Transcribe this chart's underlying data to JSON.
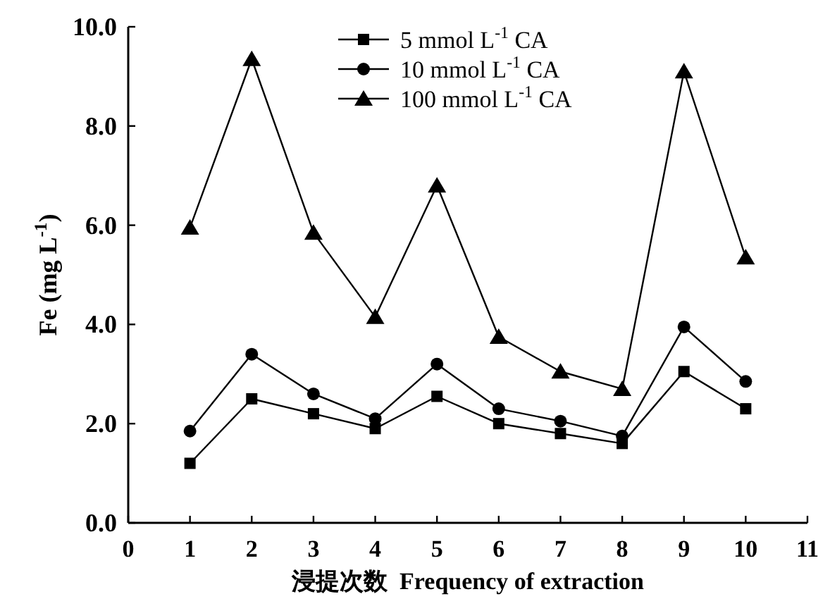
{
  "chart_data": {
    "type": "line",
    "xlabel": "浸提次数  Frequency of extraction",
    "ylabel": "Fe (mg L$^{-1}$)",
    "x": [
      1,
      2,
      3,
      4,
      5,
      6,
      7,
      8,
      9,
      10
    ],
    "xlim": [
      0,
      11
    ],
    "xticks": [
      0,
      1,
      2,
      3,
      4,
      5,
      6,
      7,
      8,
      9,
      10,
      11
    ],
    "ylim": [
      0,
      10
    ],
    "yticks": [
      {
        "value": 0,
        "label": "0.0"
      },
      {
        "value": 2,
        "label": "2.0"
      },
      {
        "value": 4,
        "label": "4.0"
      },
      {
        "value": 6,
        "label": "6.0"
      },
      {
        "value": 8,
        "label": "8.0"
      },
      {
        "value": 10,
        "label": "10.0"
      }
    ],
    "legend": "top",
    "grid": false,
    "line_style": "solid",
    "series": [
      {
        "name": "5 mmol L$^{-1}$ CA",
        "color": "#000000",
        "marker": "square",
        "values": [
          1.2,
          2.5,
          2.2,
          1.9,
          2.55,
          2.0,
          1.8,
          1.6,
          3.05,
          2.3
        ]
      },
      {
        "name": "10 mmol L$^{-1}$ CA",
        "color": "#000000",
        "marker": "circle",
        "values": [
          1.85,
          3.4,
          2.6,
          2.1,
          3.2,
          2.3,
          2.05,
          1.75,
          3.95,
          2.85
        ]
      },
      {
        "name": "100 mmol L$^{-1}$ CA",
        "color": "#000000",
        "marker": "triangle",
        "values": [
          5.95,
          9.35,
          5.85,
          4.15,
          6.8,
          3.75,
          3.05,
          2.7,
          9.1,
          5.35
        ]
      }
    ]
  }
}
